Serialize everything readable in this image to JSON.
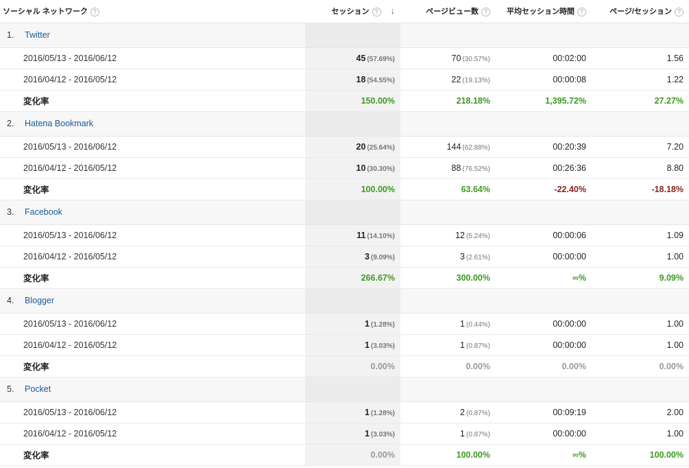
{
  "headers": {
    "network": "ソーシャル ネットワーク",
    "sessions": "セッション",
    "pageviews": "ページビュー数",
    "avg_duration": "平均セッション時間",
    "pages_per_session": "ページ/セッション",
    "help": "?",
    "sort_arrow": "↓"
  },
  "groups": [
    {
      "index": "1.",
      "name": "Twitter",
      "rows": [
        {
          "range": "2016/05/13 - 2016/06/12",
          "sessions": "45",
          "sessions_pct": "(57.69%)",
          "pageviews": "70",
          "pageviews_pct": "(30.57%)",
          "duration": "00:02:00",
          "pps": "1.56"
        },
        {
          "range": "2016/04/12 - 2016/05/12",
          "sessions": "18",
          "sessions_pct": "(54.55%)",
          "pageviews": "22",
          "pageviews_pct": "(19.13%)",
          "duration": "00:00:08",
          "pps": "1.22"
        }
      ],
      "change": {
        "label": "変化率",
        "sessions": "150.00%",
        "pageviews": "218.18%",
        "duration": "1,395.72%",
        "pps": "27.27%",
        "cls": [
          "pos",
          "pos",
          "pos",
          "pos"
        ]
      }
    },
    {
      "index": "2.",
      "name": "Hatena Bookmark",
      "rows": [
        {
          "range": "2016/05/13 - 2016/06/12",
          "sessions": "20",
          "sessions_pct": "(25.64%)",
          "pageviews": "144",
          "pageviews_pct": "(62.88%)",
          "duration": "00:20:39",
          "pps": "7.20"
        },
        {
          "range": "2016/04/12 - 2016/05/12",
          "sessions": "10",
          "sessions_pct": "(30.30%)",
          "pageviews": "88",
          "pageviews_pct": "(76.52%)",
          "duration": "00:26:36",
          "pps": "8.80"
        }
      ],
      "change": {
        "label": "変化率",
        "sessions": "100.00%",
        "pageviews": "63.64%",
        "duration": "-22.40%",
        "pps": "-18.18%",
        "cls": [
          "pos",
          "pos",
          "neg",
          "neg"
        ]
      }
    },
    {
      "index": "3.",
      "name": "Facebook",
      "rows": [
        {
          "range": "2016/05/13 - 2016/06/12",
          "sessions": "11",
          "sessions_pct": "(14.10%)",
          "pageviews": "12",
          "pageviews_pct": "(5.24%)",
          "duration": "00:00:06",
          "pps": "1.09"
        },
        {
          "range": "2016/04/12 - 2016/05/12",
          "sessions": "3",
          "sessions_pct": "(9.09%)",
          "pageviews": "3",
          "pageviews_pct": "(2.61%)",
          "duration": "00:00:00",
          "pps": "1.00"
        }
      ],
      "change": {
        "label": "変化率",
        "sessions": "266.67%",
        "pageviews": "300.00%",
        "duration": "∞%",
        "pps": "9.09%",
        "cls": [
          "pos",
          "pos",
          "pos",
          "pos"
        ]
      }
    },
    {
      "index": "4.",
      "name": "Blogger",
      "rows": [
        {
          "range": "2016/05/13 - 2016/06/12",
          "sessions": "1",
          "sessions_pct": "(1.28%)",
          "pageviews": "1",
          "pageviews_pct": "(0.44%)",
          "duration": "00:00:00",
          "pps": "1.00"
        },
        {
          "range": "2016/04/12 - 2016/05/12",
          "sessions": "1",
          "sessions_pct": "(3.03%)",
          "pageviews": "1",
          "pageviews_pct": "(0.87%)",
          "duration": "00:00:00",
          "pps": "1.00"
        }
      ],
      "change": {
        "label": "変化率",
        "sessions": "0.00%",
        "pageviews": "0.00%",
        "duration": "0.00%",
        "pps": "0.00%",
        "cls": [
          "zero",
          "zero",
          "zero",
          "zero"
        ]
      }
    },
    {
      "index": "5.",
      "name": "Pocket",
      "rows": [
        {
          "range": "2016/05/13 - 2016/06/12",
          "sessions": "1",
          "sessions_pct": "(1.28%)",
          "pageviews": "2",
          "pageviews_pct": "(0.87%)",
          "duration": "00:09:19",
          "pps": "2.00"
        },
        {
          "range": "2016/04/12 - 2016/05/12",
          "sessions": "1",
          "sessions_pct": "(3.03%)",
          "pageviews": "1",
          "pageviews_pct": "(0.87%)",
          "duration": "00:00:00",
          "pps": "1.00"
        }
      ],
      "change": {
        "label": "変化率",
        "sessions": "0.00%",
        "pageviews": "100.00%",
        "duration": "∞%",
        "pps": "100.00%",
        "cls": [
          "zero",
          "pos",
          "pos",
          "pos"
        ]
      }
    }
  ],
  "colors": {
    "positive": "#3c9a1f",
    "negative": "#8a2222",
    "neutral": "#9a9a9a",
    "link": "#1a5a96"
  }
}
